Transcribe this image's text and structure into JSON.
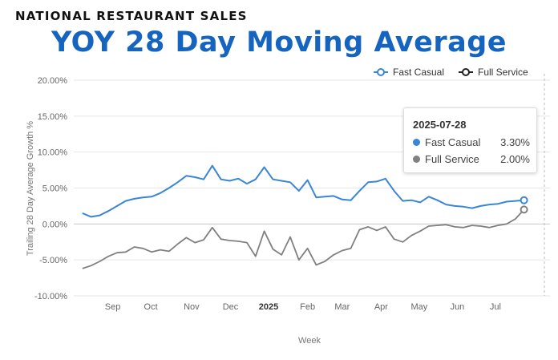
{
  "kicker": "NATIONAL RESTAURANT SALES",
  "title": "YOY 28 Day Moving Average",
  "chart_data": {
    "type": "line",
    "ylabel": "Trailing 28 Day Average Growth %",
    "xlabel": "Week",
    "ylim": [
      -10,
      20
    ],
    "y_ticks": [
      "20.00%",
      "15.00%",
      "10.00%",
      "5.00%",
      "0.00%",
      "-5.00%",
      "-10.00%"
    ],
    "x_range": [
      -1,
      54
    ],
    "x_ticks": [
      {
        "label": "Sep",
        "week": 3.5,
        "bold": false
      },
      {
        "label": "Oct",
        "week": 7.9,
        "bold": false
      },
      {
        "label": "Nov",
        "week": 12.6,
        "bold": false
      },
      {
        "label": "Dec",
        "week": 17.1,
        "bold": false
      },
      {
        "label": "2025",
        "week": 21.5,
        "bold": true
      },
      {
        "label": "Feb",
        "week": 26.0,
        "bold": false
      },
      {
        "label": "Mar",
        "week": 30.0,
        "bold": false
      },
      {
        "label": "Apr",
        "week": 34.5,
        "bold": false
      },
      {
        "label": "May",
        "week": 38.9,
        "bold": false
      },
      {
        "label": "Jun",
        "week": 43.3,
        "bold": false
      },
      {
        "label": "Jul",
        "week": 47.7,
        "bold": false
      }
    ],
    "series": [
      {
        "name": "Fast Casual",
        "color": "#3a86d4",
        "values": [
          1.5,
          1.0,
          1.2,
          1.8,
          2.5,
          3.2,
          3.5,
          3.7,
          3.8,
          4.3,
          5.0,
          5.8,
          6.7,
          6.5,
          6.2,
          8.1,
          6.2,
          6.0,
          6.3,
          5.6,
          6.2,
          7.9,
          6.2,
          6.0,
          5.8,
          4.6,
          6.1,
          3.7,
          3.8,
          3.9,
          3.4,
          3.3,
          4.6,
          5.8,
          5.9,
          6.3,
          4.6,
          3.2,
          3.3,
          3.0,
          3.8,
          3.3,
          2.7,
          2.5,
          2.4,
          2.2,
          2.5,
          2.7,
          2.8,
          3.1,
          3.2,
          3.3
        ]
      },
      {
        "name": "Full Service",
        "color": "#808080",
        "values": [
          -6.2,
          -5.8,
          -5.2,
          -4.5,
          -4.0,
          -3.9,
          -3.2,
          -3.4,
          -3.9,
          -3.6,
          -3.8,
          -2.8,
          -1.9,
          -2.6,
          -2.2,
          -0.5,
          -2.1,
          -2.3,
          -2.4,
          -2.6,
          -4.5,
          -1.0,
          -3.5,
          -4.3,
          -1.8,
          -5.0,
          -3.4,
          -5.7,
          -5.2,
          -4.3,
          -3.7,
          -3.4,
          -0.8,
          -0.4,
          -0.9,
          -0.4,
          -2.1,
          -2.5,
          -1.6,
          -1.0,
          -0.3,
          -0.2,
          -0.1,
          -0.4,
          -0.5,
          -0.2,
          -0.3,
          -0.5,
          -0.2,
          0.0,
          0.7,
          2.0
        ]
      }
    ],
    "tooltip": {
      "date": "2025-07-28",
      "rows": [
        {
          "name": "Fast Casual",
          "value": "3.30%",
          "color": "#3a86d4"
        },
        {
          "name": "Full Service",
          "value": "2.00%",
          "color": "#808080"
        }
      ]
    }
  }
}
